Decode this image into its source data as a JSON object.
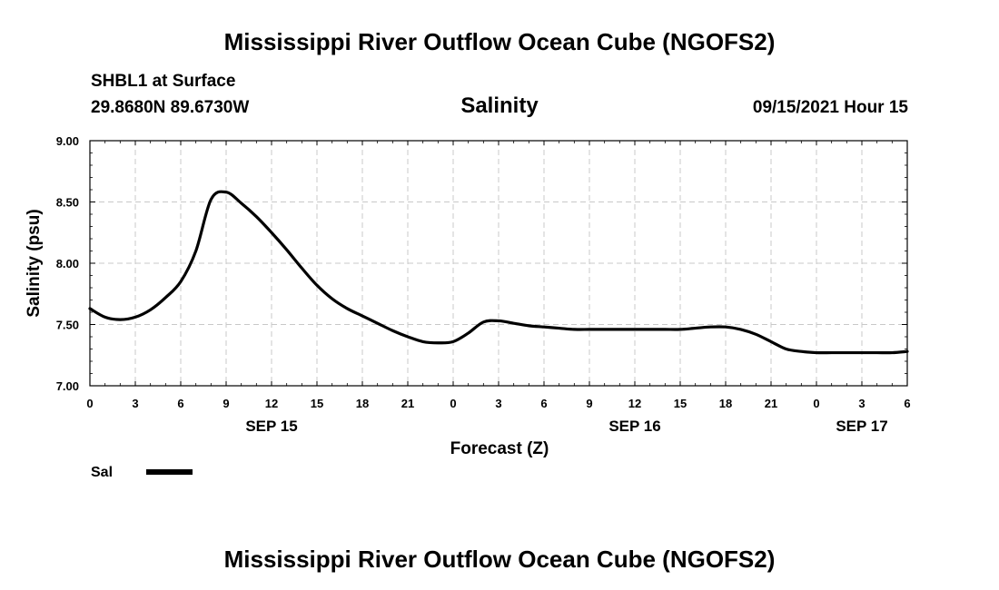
{
  "header": {
    "title": "Mississippi River Outflow Ocean Cube (NGOFS2)",
    "station": "SHBL1 at Surface",
    "location": "29.8680N  89.6730W",
    "datetime": "09/15/2021 Hour 15",
    "footer_title": "Mississippi River Outflow Ocean Cube (NGOFS2)"
  },
  "chart_data": {
    "type": "line",
    "title": "Salinity",
    "xlabel": "Forecast (Z)",
    "ylabel": "Salinity (psu)",
    "xlim": [
      0,
      54
    ],
    "ylim": [
      7.0,
      9.0
    ],
    "grid": true,
    "y_ticks": [
      7.0,
      7.5,
      8.0,
      8.5,
      9.0
    ],
    "y_tick_labels": [
      "7.00",
      "7.50",
      "8.00",
      "8.50",
      "9.00"
    ],
    "x_ticks": [
      0,
      3,
      6,
      9,
      12,
      15,
      18,
      21,
      24,
      27,
      30,
      33,
      36,
      39,
      42,
      45,
      48,
      51,
      54
    ],
    "x_tick_labels": [
      "0",
      "3",
      "6",
      "9",
      "12",
      "15",
      "18",
      "21",
      "0",
      "3",
      "6",
      "9",
      "12",
      "15",
      "18",
      "21",
      "0",
      "3",
      "6"
    ],
    "date_labels": [
      {
        "x": 12,
        "label": "SEP 15"
      },
      {
        "x": 36,
        "label": "SEP 16"
      },
      {
        "x": 51,
        "label": "SEP 17"
      }
    ],
    "legend": [
      {
        "name": "Sal",
        "color": "#000000"
      }
    ],
    "series": [
      {
        "name": "Sal",
        "color": "#000000",
        "x": [
          0,
          1,
          2,
          3,
          4,
          5,
          6,
          7,
          8,
          9,
          10,
          11,
          12,
          13,
          14,
          15,
          16,
          17,
          18,
          19,
          20,
          21,
          22,
          23,
          24,
          25,
          26,
          27,
          28,
          29,
          30,
          31,
          32,
          33,
          34,
          35,
          36,
          37,
          38,
          39,
          40,
          41,
          42,
          43,
          44,
          45,
          46,
          47,
          48,
          49,
          50,
          51,
          52,
          53,
          54
        ],
        "values": [
          7.63,
          7.56,
          7.54,
          7.56,
          7.62,
          7.72,
          7.85,
          8.1,
          8.52,
          8.58,
          8.49,
          8.38,
          8.25,
          8.11,
          7.96,
          7.82,
          7.71,
          7.63,
          7.57,
          7.51,
          7.45,
          7.4,
          7.36,
          7.35,
          7.36,
          7.43,
          7.52,
          7.53,
          7.51,
          7.49,
          7.48,
          7.47,
          7.46,
          7.46,
          7.46,
          7.46,
          7.46,
          7.46,
          7.46,
          7.46,
          7.47,
          7.48,
          7.48,
          7.46,
          7.42,
          7.36,
          7.3,
          7.28,
          7.27,
          7.27,
          7.27,
          7.27,
          7.27,
          7.27,
          7.28
        ]
      }
    ]
  }
}
